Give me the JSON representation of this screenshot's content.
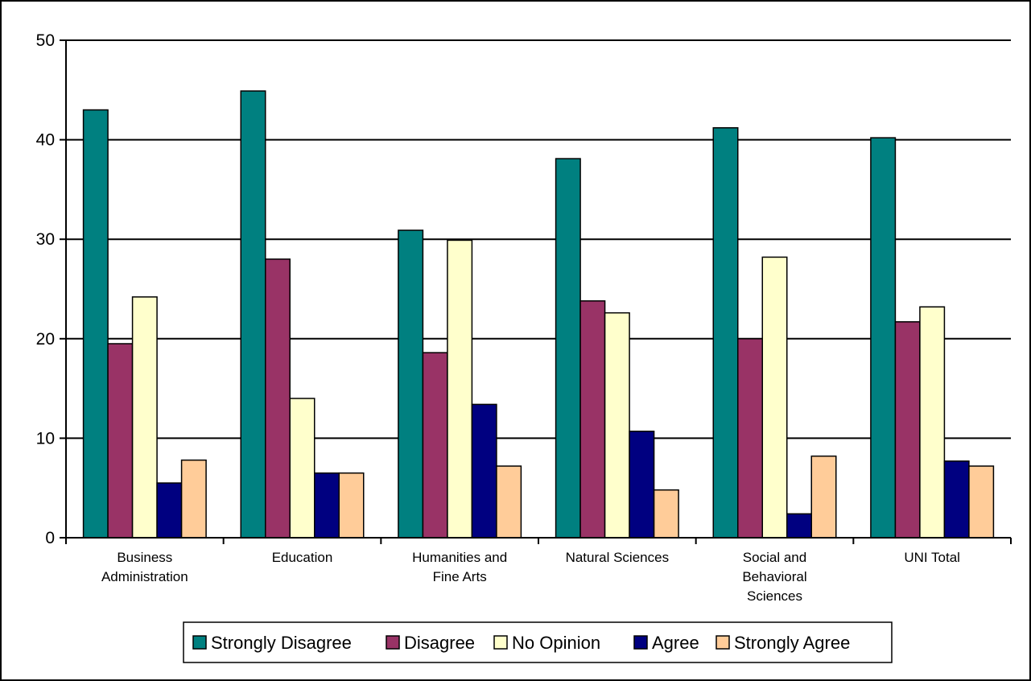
{
  "chart_data": {
    "type": "bar",
    "categories": [
      [
        "Business",
        "Administration"
      ],
      [
        "Education"
      ],
      [
        "Humanities and",
        "Fine Arts"
      ],
      [
        "Natural Sciences"
      ],
      [
        "Social and",
        "Behavioral",
        "Sciences"
      ],
      [
        "UNI Total"
      ]
    ],
    "series": [
      {
        "name": "Strongly Disagree",
        "color": "#008080",
        "values": [
          43,
          44.9,
          30.9,
          38.1,
          41.2,
          40.2
        ]
      },
      {
        "name": "Disagree",
        "color": "#993366",
        "values": [
          19.5,
          28,
          18.6,
          23.8,
          20,
          21.7
        ]
      },
      {
        "name": "No Opinion",
        "color": "#FFFFCC",
        "values": [
          24.2,
          14,
          29.9,
          22.6,
          28.2,
          23.2
        ]
      },
      {
        "name": "Agree",
        "color": "#000080",
        "values": [
          5.5,
          6.5,
          13.4,
          10.7,
          2.4,
          7.7
        ]
      },
      {
        "name": "Strongly Agree",
        "color": "#FFCC99",
        "values": [
          7.8,
          6.5,
          7.2,
          4.8,
          8.2,
          7.2
        ]
      }
    ],
    "ylim": [
      0,
      50
    ],
    "yticks": [
      "0",
      "10",
      "20",
      "30",
      "40",
      "50"
    ],
    "grid": true,
    "legend_position": "bottom"
  }
}
